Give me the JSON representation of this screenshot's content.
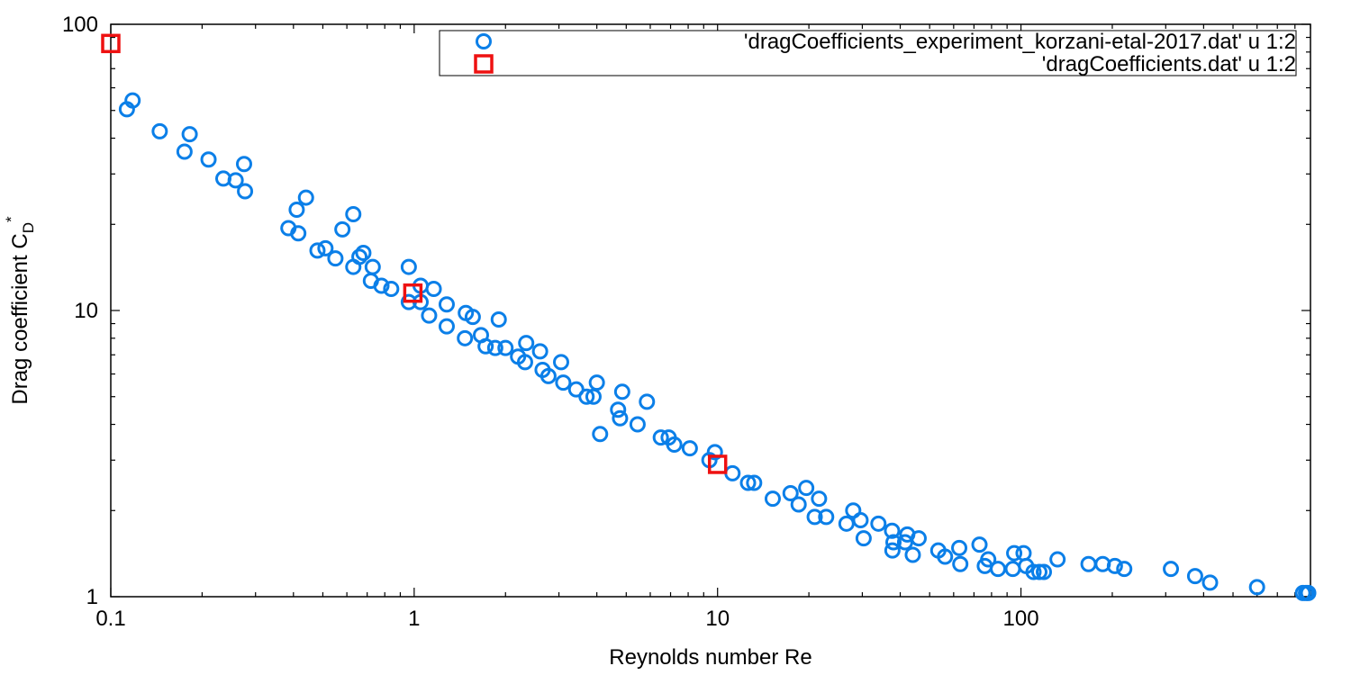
{
  "chart_data": {
    "type": "scatter",
    "title": "",
    "xlabel": "Reynolds number Re",
    "ylabel": {
      "main": "Drag coefficient C",
      "sub": "D",
      "sup": "*"
    },
    "x_scale": "log",
    "y_scale": "log",
    "xlim": [
      0.1,
      900
    ],
    "ylim": [
      1,
      100
    ],
    "x_ticks": [
      {
        "value": 0.1,
        "label": "0.1"
      },
      {
        "value": 1,
        "label": "1"
      },
      {
        "value": 10,
        "label": "10"
      },
      {
        "value": 100,
        "label": "100"
      }
    ],
    "y_ticks": [
      {
        "value": 1,
        "label": "1"
      },
      {
        "value": 10,
        "label": "10"
      },
      {
        "value": 100,
        "label": "100"
      }
    ],
    "grid": false,
    "legend_position": "top-right",
    "series": [
      {
        "name": "'dragCoefficients_experiment_korzani-etal-2017.dat' u 1:2",
        "marker": "circle",
        "color": "#0b7fe8",
        "points": [
          [
            0.113,
            50.5
          ],
          [
            0.118,
            54.2
          ],
          [
            0.145,
            42.3
          ],
          [
            0.175,
            35.9
          ],
          [
            0.182,
            41.3
          ],
          [
            0.21,
            33.7
          ],
          [
            0.235,
            28.9
          ],
          [
            0.258,
            28.5
          ],
          [
            0.275,
            32.5
          ],
          [
            0.277,
            26.1
          ],
          [
            0.385,
            19.4
          ],
          [
            0.41,
            22.5
          ],
          [
            0.415,
            18.6
          ],
          [
            0.44,
            24.8
          ],
          [
            0.48,
            16.2
          ],
          [
            0.51,
            16.5
          ],
          [
            0.55,
            15.2
          ],
          [
            0.58,
            19.2
          ],
          [
            0.63,
            21.7
          ],
          [
            0.63,
            14.2
          ],
          [
            0.66,
            15.4
          ],
          [
            0.68,
            15.9
          ],
          [
            0.72,
            12.7
          ],
          [
            0.73,
            14.2
          ],
          [
            0.78,
            12.2
          ],
          [
            0.84,
            11.9
          ],
          [
            0.96,
            14.2
          ],
          [
            0.96,
            10.7
          ],
          [
            1.05,
            10.7
          ],
          [
            1.05,
            12.2
          ],
          [
            1.12,
            9.6
          ],
          [
            1.16,
            11.9
          ],
          [
            1.28,
            8.8
          ],
          [
            1.28,
            10.5
          ],
          [
            1.47,
            8.0
          ],
          [
            1.48,
            9.8
          ],
          [
            1.56,
            9.5
          ],
          [
            1.66,
            8.2
          ],
          [
            1.72,
            7.5
          ],
          [
            1.85,
            7.4
          ],
          [
            1.9,
            9.3
          ],
          [
            2.0,
            7.4
          ],
          [
            2.2,
            6.9
          ],
          [
            2.32,
            6.6
          ],
          [
            2.34,
            7.7
          ],
          [
            2.6,
            7.2
          ],
          [
            2.65,
            6.2
          ],
          [
            2.77,
            5.9
          ],
          [
            3.05,
            6.6
          ],
          [
            3.1,
            5.6
          ],
          [
            3.42,
            5.3
          ],
          [
            3.7,
            5.0
          ],
          [
            3.9,
            5.0
          ],
          [
            4.0,
            5.6
          ],
          [
            4.1,
            3.7
          ],
          [
            4.7,
            4.5
          ],
          [
            4.77,
            4.2
          ],
          [
            4.85,
            5.2
          ],
          [
            5.45,
            4.0
          ],
          [
            5.85,
            4.8
          ],
          [
            6.5,
            3.6
          ],
          [
            6.9,
            3.6
          ],
          [
            7.2,
            3.4
          ],
          [
            8.1,
            3.3
          ],
          [
            9.4,
            3.0
          ],
          [
            9.8,
            3.2
          ],
          [
            11.2,
            2.7
          ],
          [
            12.6,
            2.5
          ],
          [
            13.2,
            2.5
          ],
          [
            15.2,
            2.2
          ],
          [
            17.4,
            2.3
          ],
          [
            18.5,
            2.1
          ],
          [
            19.6,
            2.4
          ],
          [
            20.9,
            1.9
          ],
          [
            21.6,
            2.2
          ],
          [
            22.8,
            1.9
          ],
          [
            26.6,
            1.8
          ],
          [
            28.0,
            2.0
          ],
          [
            29.6,
            1.85
          ],
          [
            30.3,
            1.6
          ],
          [
            33.9,
            1.8
          ],
          [
            37.6,
            1.7
          ],
          [
            37.7,
            1.45
          ],
          [
            38.0,
            1.55
          ],
          [
            41.5,
            1.55
          ],
          [
            42.2,
            1.65
          ],
          [
            44.0,
            1.4
          ],
          [
            46.0,
            1.6
          ],
          [
            53.4,
            1.45
          ],
          [
            56.2,
            1.38
          ],
          [
            62.6,
            1.48
          ],
          [
            63.1,
            1.3
          ],
          [
            73.0,
            1.52
          ],
          [
            76.0,
            1.28
          ],
          [
            78.0,
            1.35
          ],
          [
            84.0,
            1.25
          ],
          [
            94.0,
            1.25
          ],
          [
            95.0,
            1.42
          ],
          [
            102.0,
            1.42
          ],
          [
            104.0,
            1.28
          ],
          [
            110.0,
            1.22
          ],
          [
            115.0,
            1.22
          ],
          [
            119.0,
            1.22
          ],
          [
            132.0,
            1.35
          ],
          [
            167.0,
            1.3
          ],
          [
            186.0,
            1.3
          ],
          [
            204.0,
            1.28
          ],
          [
            219.0,
            1.25
          ],
          [
            312.0,
            1.25
          ],
          [
            375.0,
            1.18
          ],
          [
            420.0,
            1.12
          ],
          [
            600.0,
            1.08
          ],
          [
            850.0,
            1.03
          ],
          [
            870.0,
            1.03
          ],
          [
            885.0,
            1.03
          ]
        ]
      },
      {
        "name": "'dragCoefficients.dat' u 1:2",
        "marker": "square",
        "color": "#ee1111",
        "points": [
          [
            0.1,
            85.7
          ],
          [
            0.99,
            11.5
          ],
          [
            10.0,
            2.9
          ]
        ]
      }
    ]
  }
}
